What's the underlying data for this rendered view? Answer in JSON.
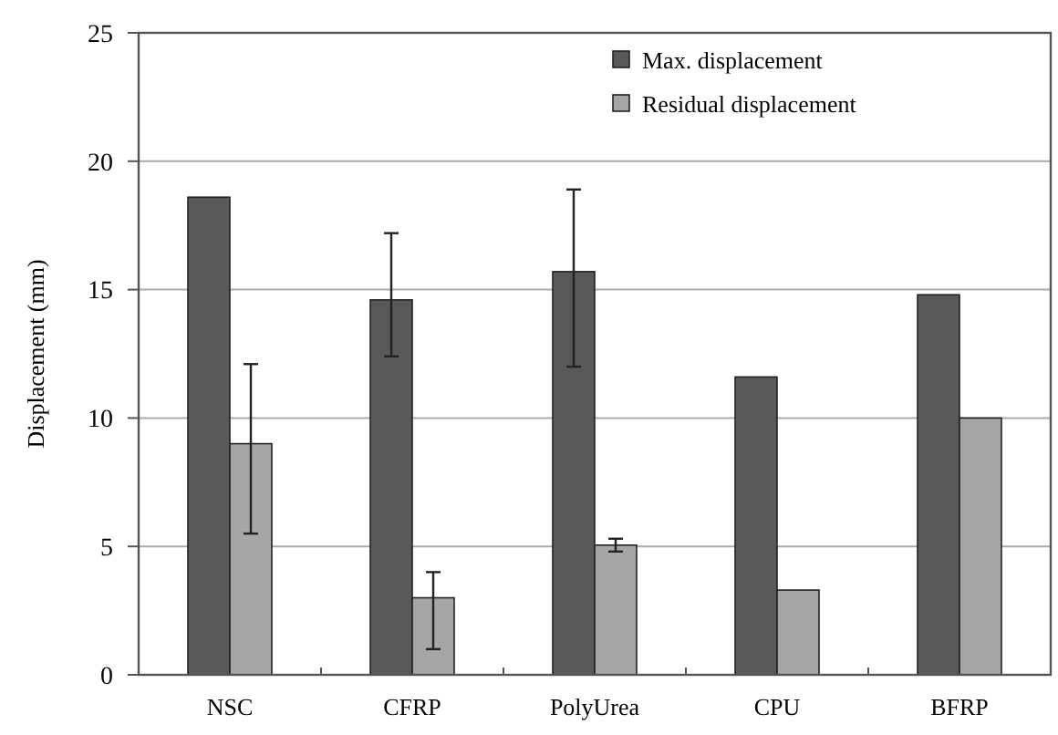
{
  "chart_data": {
    "type": "bar",
    "ylabel": "Displacement (mm)",
    "categories": [
      "NSC",
      "CFRP",
      "PolyUrea",
      "CPU",
      "BFRP"
    ],
    "series": [
      {
        "name": "Max. displacement",
        "color": "#595959",
        "values": [
          18.6,
          14.6,
          15.7,
          11.6,
          14.8
        ],
        "errors": [
          null,
          [
            12.4,
            17.2
          ],
          [
            12.0,
            18.9
          ],
          null,
          null
        ]
      },
      {
        "name": "Residual displacement",
        "color": "#a6a6a6",
        "values": [
          9.0,
          3.0,
          5.05,
          3.3,
          10.0
        ],
        "errors": [
          [
            5.5,
            12.1
          ],
          [
            1.0,
            4.0
          ],
          [
            4.8,
            5.3
          ],
          null,
          null
        ]
      }
    ],
    "ylim": [
      0,
      25
    ],
    "yticks": [
      0,
      5,
      10,
      15,
      20,
      25
    ],
    "grid": "y",
    "legend": "top right"
  }
}
